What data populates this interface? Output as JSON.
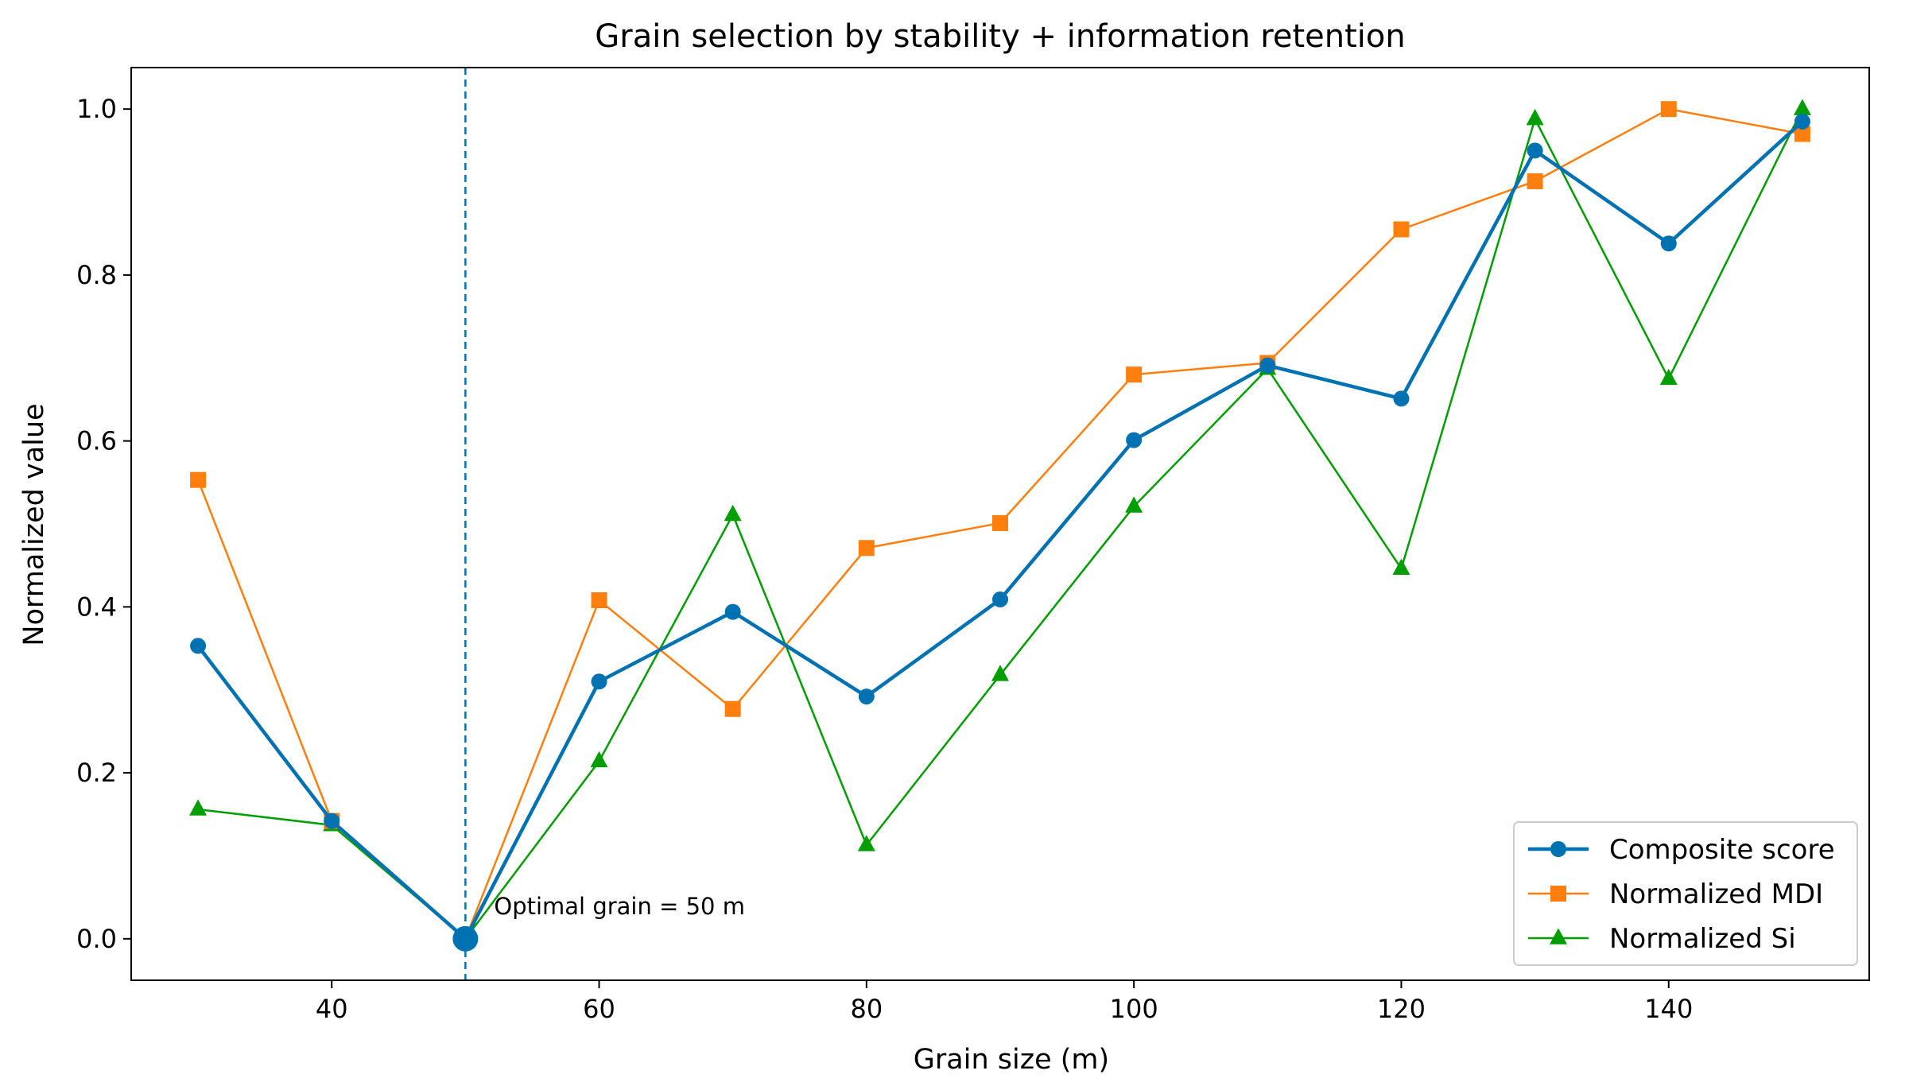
{
  "chart_data": {
    "type": "line",
    "title": "Grain selection by stability + information retention",
    "xlabel": "Grain size (m)",
    "ylabel": "Normalized value",
    "xlim": [
      25,
      155
    ],
    "ylim": [
      -0.05,
      1.05
    ],
    "xticks": [
      40,
      60,
      80,
      100,
      120,
      140
    ],
    "xtick_labels": [
      "40",
      "60",
      "80",
      "100",
      "120",
      "140"
    ],
    "yticks": [
      0.0,
      0.2,
      0.4,
      0.6,
      0.8,
      1.0
    ],
    "ytick_labels": [
      "0.0",
      "0.2",
      "0.4",
      "0.6",
      "0.8",
      "1.0"
    ],
    "grid": false,
    "x": [
      30,
      40,
      50,
      60,
      70,
      80,
      90,
      100,
      110,
      120,
      130,
      140,
      150
    ],
    "series": [
      {
        "name": "Composite score",
        "color": "#0072B2",
        "marker": "circle",
        "values": [
          0.353,
          0.142,
          0.0,
          0.31,
          0.394,
          0.292,
          0.409,
          0.601,
          0.691,
          0.651,
          0.95,
          0.838,
          0.985
        ]
      },
      {
        "name": "Normalized MDI",
        "color": "#FF7F0E",
        "marker": "square",
        "values": [
          0.553,
          0.142,
          0.0,
          0.408,
          0.277,
          0.471,
          0.501,
          0.68,
          0.694,
          0.855,
          0.913,
          1.0,
          0.97
        ]
      },
      {
        "name": "Normalized Si",
        "color": "#009E00",
        "marker": "triangle",
        "values": [
          0.156,
          0.137,
          0.0,
          0.214,
          0.511,
          0.113,
          0.318,
          0.521,
          0.687,
          0.446,
          0.988,
          0.675,
          1.0
        ]
      }
    ],
    "optimal": {
      "x": 50,
      "y": 0.0,
      "label": "Optimal grain = 50 m",
      "line_color": "#0072B2"
    },
    "legend_position": "lower-right"
  }
}
